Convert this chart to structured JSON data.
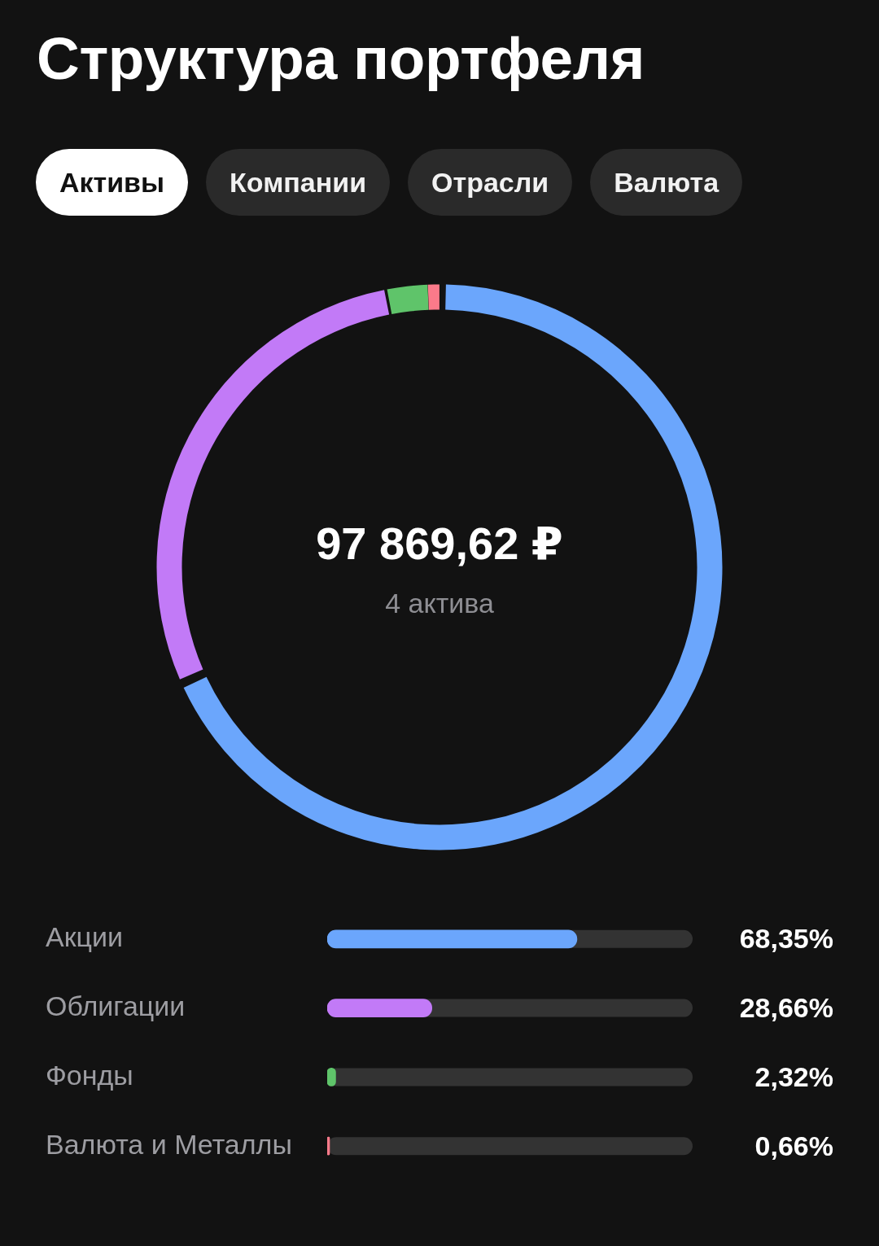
{
  "chart_data": [
    {
      "type": "other",
      "title": "Структура портфеля",
      "annotations": [
        "Активы",
        "Компании",
        "Отрасли",
        "Валюта"
      ]
    },
    {
      "type": "donut",
      "categories": [
        null,
        null,
        null,
        null
      ],
      "values": [
        68.35,
        28.66,
        2.32,
        0.66
      ],
      "colors": [
        "#6ba6fc",
        "#c27af7",
        "#5fc46a",
        "#fb7a8a"
      ],
      "annotations": [
        "97 869,62 ₽",
        "4 актива"
      ]
    },
    {
      "type": "bar",
      "orientation": "horizontal",
      "categories": [
        "Акции",
        "Облигации",
        "Фонды",
        "Валюта и Металлы"
      ],
      "values": [
        68.35,
        28.66,
        2.32,
        0.66
      ],
      "colors": [
        "#6ba6fc",
        "#c27af7",
        "#5fc46a",
        "#fb7a8a"
      ],
      "value_labels": [
        "68,35%",
        "28,66%",
        "2,32%",
        "0,66%"
      ],
      "xlim": [
        0,
        100
      ],
      "tick_labels": "y"
    }
  ]
}
